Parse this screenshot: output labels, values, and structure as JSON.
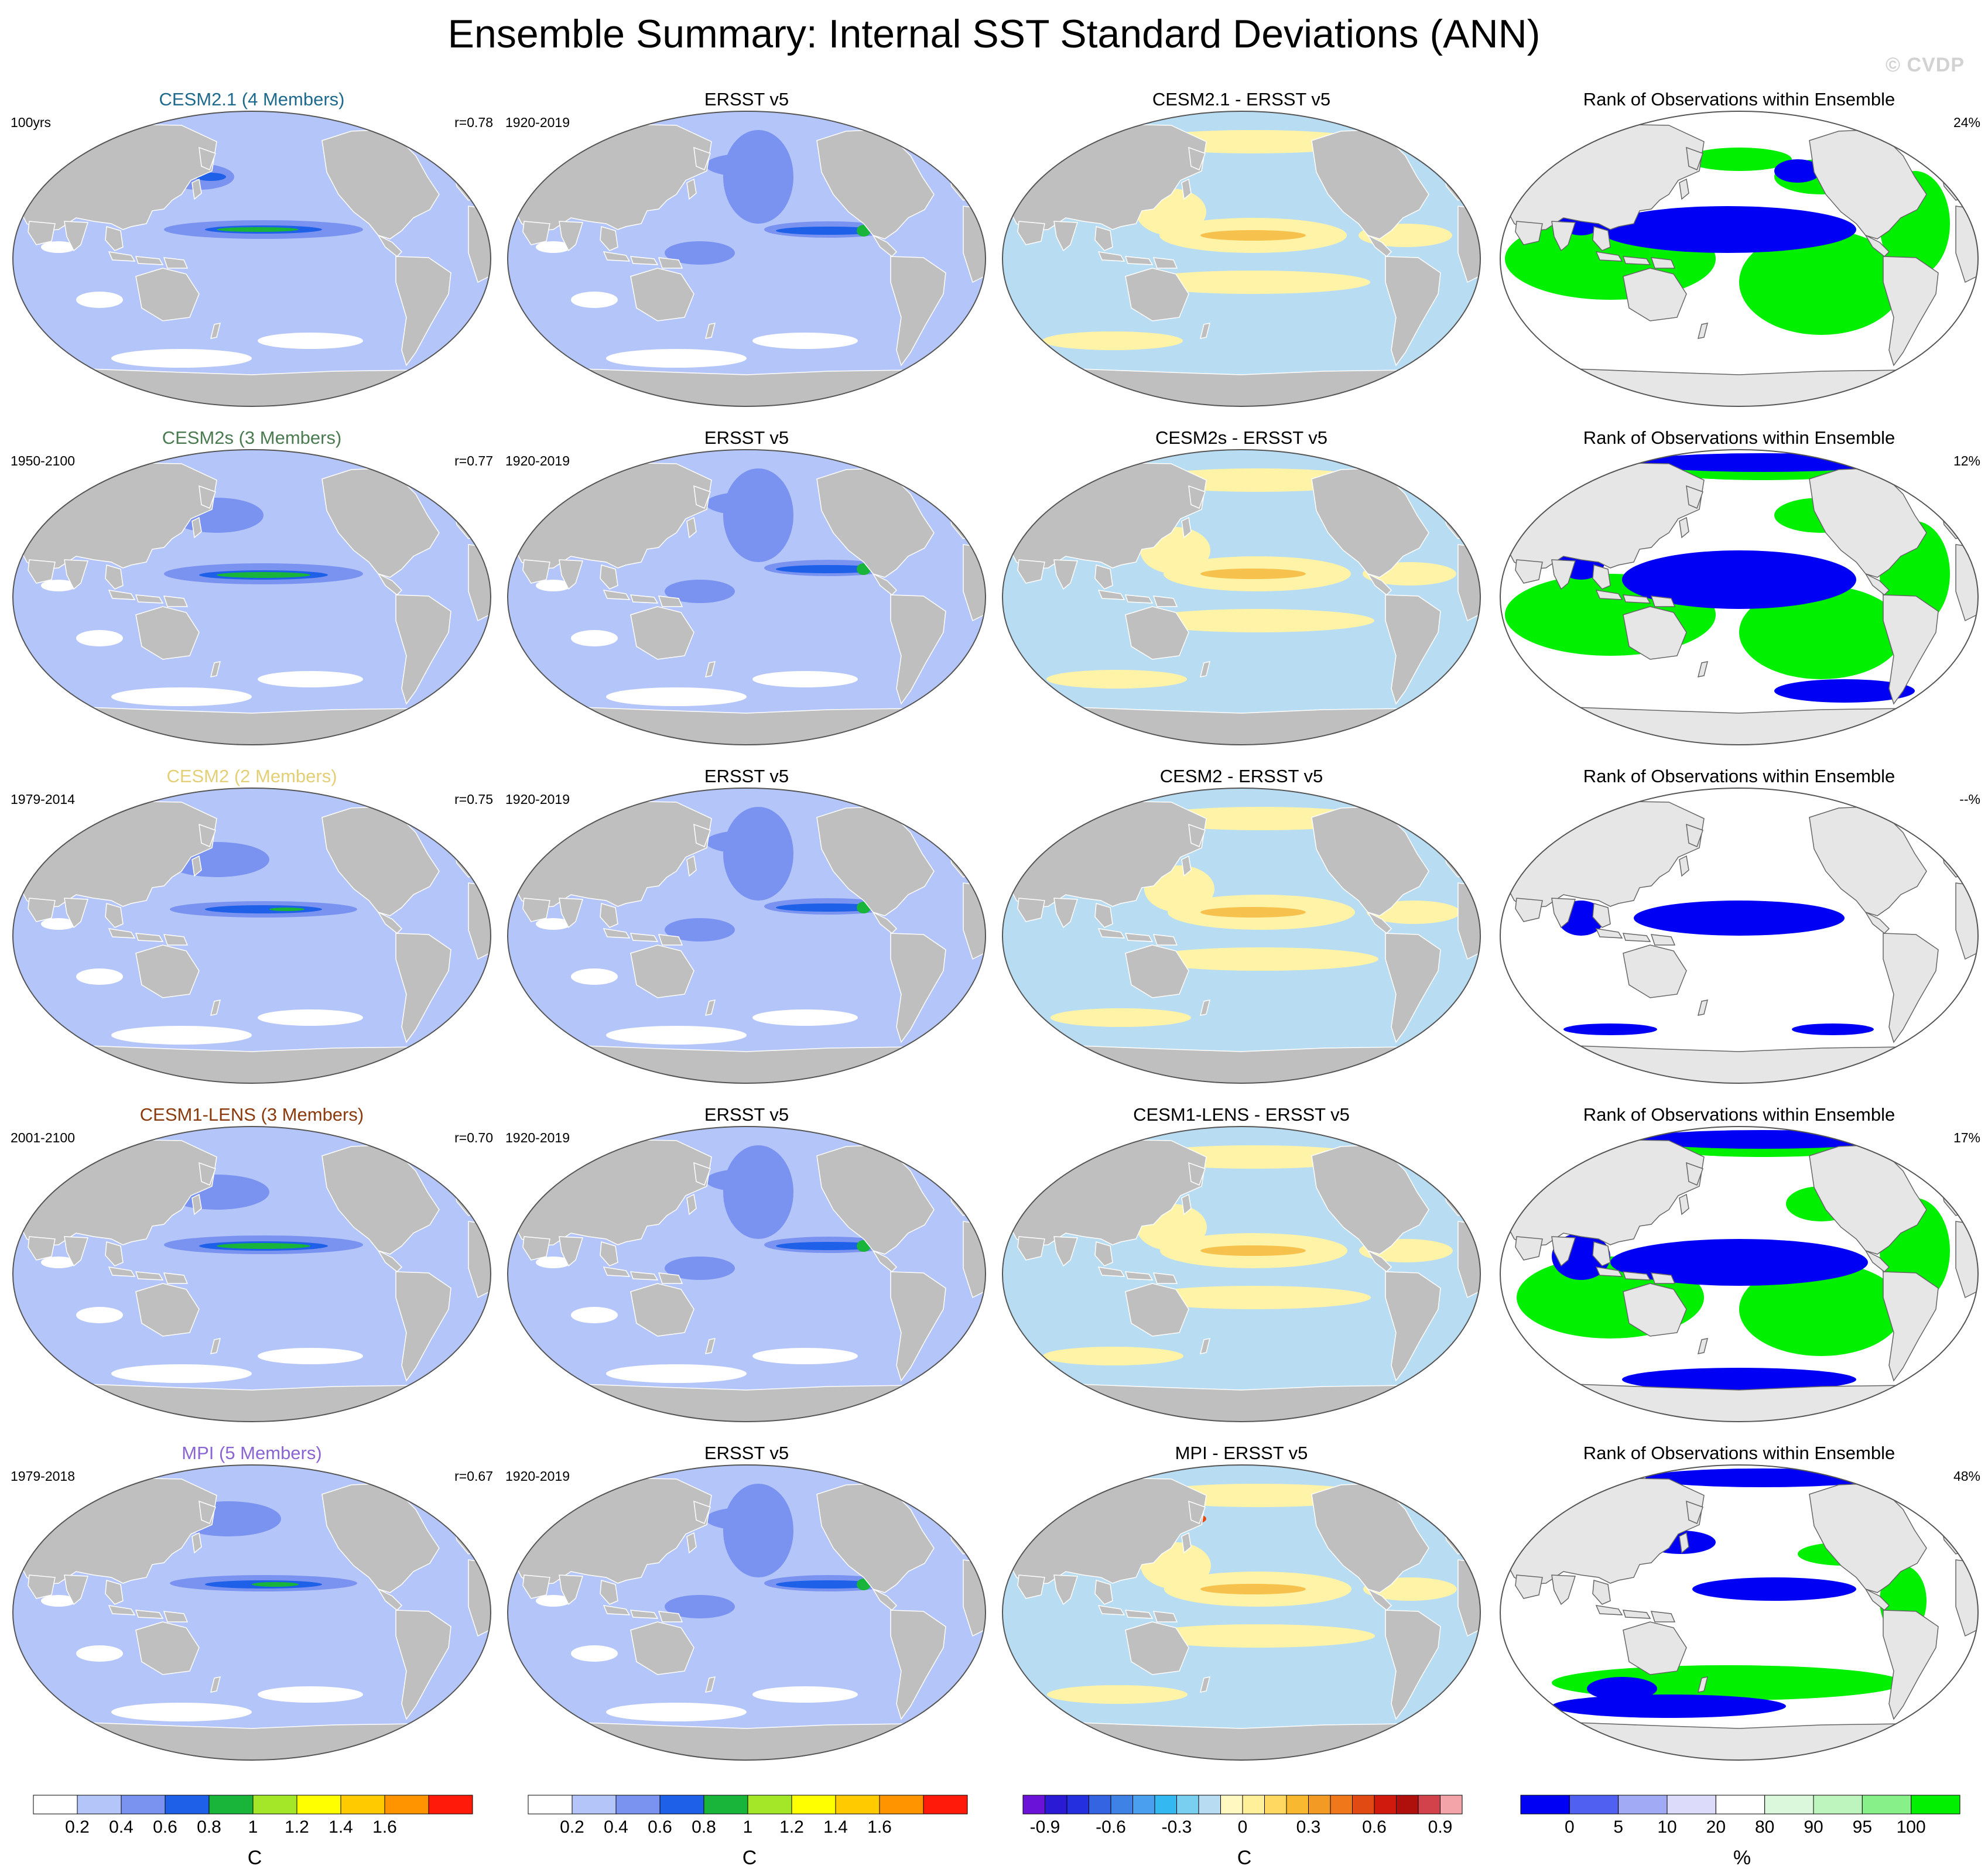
{
  "title": "Ensemble Summary: Internal SST Standard Deviations (ANN)",
  "watermark": "© CVDP",
  "colors": {
    "land": "#bfbfbf",
    "rank_land": "#e6e6e6",
    "ocean_base": "#b4c5fa",
    "ocean_mid": "#7b93f0",
    "ocean_high": "#1f60e8",
    "peak_green": "#19b43a",
    "diff_pos": "#fff3a8",
    "diff_neg": "#b8dcf2",
    "diff_posstrong": "#f6c14c",
    "rank_blue": "#0000f5",
    "rank_green": "#00f000"
  },
  "rows": [
    {
      "model": {
        "title": "CESM2.1 (4 Members)",
        "color": "#1e6a8c",
        "left": "100yrs",
        "right": "r=0.78"
      },
      "obs": {
        "title": "ERSST v5",
        "left": "1920-2019"
      },
      "diff": {
        "title": "CESM2.1 - ERSST v5"
      },
      "rank": {
        "title": "Rank of Observations within Ensemble",
        "right": "24%"
      }
    },
    {
      "model": {
        "title": "CESM2s (3 Members)",
        "color": "#4a7a50",
        "left": "1950-2100",
        "right": "r=0.77"
      },
      "obs": {
        "title": "ERSST v5",
        "left": "1920-2019"
      },
      "diff": {
        "title": "CESM2s - ERSST v5"
      },
      "rank": {
        "title": "Rank of Observations within Ensemble",
        "right": "12%"
      }
    },
    {
      "model": {
        "title": "CESM2 (2 Members)",
        "color": "#e3cf76",
        "left": "1979-2014",
        "right": "r=0.75"
      },
      "obs": {
        "title": "ERSST v5",
        "left": "1920-2019"
      },
      "diff": {
        "title": "CESM2 - ERSST v5"
      },
      "rank": {
        "title": "Rank of Observations within Ensemble",
        "right": "--%"
      }
    },
    {
      "model": {
        "title": "CESM1-LENS (3 Members)",
        "color": "#8a3a0c",
        "left": "2001-2100",
        "right": "r=0.70"
      },
      "obs": {
        "title": "ERSST v5",
        "left": "1920-2019"
      },
      "diff": {
        "title": "CESM1-LENS - ERSST v5"
      },
      "rank": {
        "title": "Rank of Observations within Ensemble",
        "right": "17%"
      }
    },
    {
      "model": {
        "title": "MPI (5 Members)",
        "color": "#8a64d2",
        "left": "1979-2018",
        "right": "r=0.67"
      },
      "obs": {
        "title": "ERSST v5",
        "left": "1920-2019"
      },
      "diff": {
        "title": "MPI - ERSST v5"
      },
      "rank": {
        "title": "Rank of Observations within Ensemble",
        "right": "48%"
      }
    }
  ],
  "colorbars": [
    {
      "unit": "C",
      "labels": [
        "0.2",
        "0.4",
        "0.6",
        "0.8",
        "1",
        "1.2",
        "1.4",
        "1.6"
      ],
      "colors": [
        "#ffffff",
        "#b4c5fa",
        "#7b93f0",
        "#1f60e8",
        "#19b43a",
        "#a4e628",
        "#ffff00",
        "#ffcb00",
        "#ff9300",
        "#ff1a0a"
      ]
    },
    {
      "unit": "C",
      "labels": [
        "0.2",
        "0.4",
        "0.6",
        "0.8",
        "1",
        "1.2",
        "1.4",
        "1.6"
      ],
      "colors": [
        "#ffffff",
        "#b4c5fa",
        "#7b93f0",
        "#1f60e8",
        "#19b43a",
        "#a4e628",
        "#ffff00",
        "#ffcb00",
        "#ff9300",
        "#ff1a0a"
      ]
    },
    {
      "unit": "C",
      "labels": [
        "-0.9",
        "-0.6",
        "-0.3",
        "0",
        "0.3",
        "0.6",
        "0.9"
      ],
      "colors": [
        "#6a12d8",
        "#2a1ad6",
        "#2430e0",
        "#3464e2",
        "#3e82e6",
        "#4aa0ee",
        "#34b8f2",
        "#78cff0",
        "#b8dcf2",
        "#fff8c0",
        "#fff099",
        "#fed860",
        "#f8b830",
        "#f39a24",
        "#f0781a",
        "#e24a14",
        "#d01a0e",
        "#b0100c",
        "#d2424a",
        "#f2a4a8"
      ]
    },
    {
      "unit": "%",
      "labels": [
        "0",
        "5",
        "10",
        "20",
        "80",
        "90",
        "95",
        "100"
      ],
      "colors": [
        "#0000f5",
        "#5060f0",
        "#a0aaf5",
        "#dcdcfa",
        "#ffffff",
        "#dcf8dc",
        "#bef5be",
        "#88f088",
        "#00f000"
      ]
    }
  ]
}
